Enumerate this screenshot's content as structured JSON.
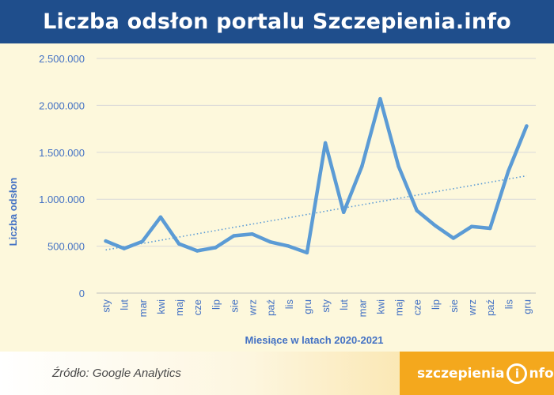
{
  "header": {
    "title": "Liczba odsłon portalu Szczepienia.info"
  },
  "footer": {
    "source": "Źródło: Google Analytics",
    "logo_text": "szczepienia",
    "logo_icon_letter": "i",
    "logo_suffix": "nfo"
  },
  "colors": {
    "title_bg": "#1f4e8c",
    "plot_bg": "#fdf8dc",
    "line": "#5b9bd5",
    "axis_text": "#4472c4",
    "logo_bg": "#f4a81d"
  },
  "chart_data": {
    "type": "line",
    "title": "Liczba odsłon portalu Szczepienia.info",
    "xlabel": "Miesiące w latach 2020-2021",
    "ylabel": "Liczba odsłon",
    "categories": [
      "sty",
      "lut",
      "mar",
      "kwi",
      "maj",
      "cze",
      "lip",
      "sie",
      "wrz",
      "paź",
      "lis",
      "gru",
      "sty",
      "lut",
      "mar",
      "kwi",
      "maj",
      "cze",
      "lip",
      "sie",
      "wrz",
      "paź",
      "lis",
      "gru"
    ],
    "series": [
      {
        "name": "Liczba odsłon",
        "values": [
          555000,
          475000,
          550000,
          810000,
          525000,
          450000,
          485000,
          610000,
          630000,
          545000,
          500000,
          430000,
          1600000,
          860000,
          1350000,
          2070000,
          1350000,
          880000,
          720000,
          585000,
          710000,
          690000,
          1300000,
          1780000
        ]
      }
    ],
    "trendline": {
      "type": "linear",
      "start": 460000,
      "end": 1250000,
      "style": "dotted"
    },
    "ylim": [
      0,
      2500000
    ],
    "yticks": [
      0,
      500000,
      1000000,
      1500000,
      2000000,
      2500000
    ],
    "ytick_labels": [
      "0",
      "500.000",
      "1.000.000",
      "1.500.000",
      "2.000.000",
      "2.500.000"
    ],
    "grid": true,
    "legend": "none"
  }
}
